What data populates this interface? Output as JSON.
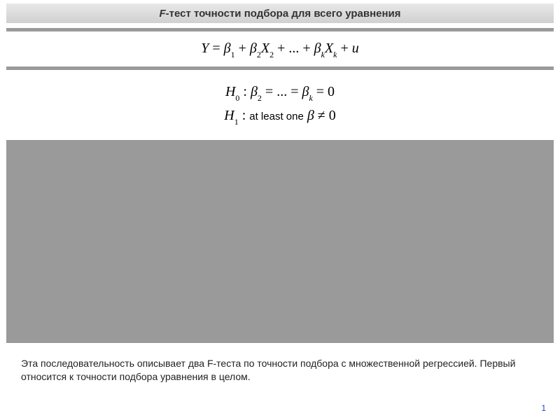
{
  "title": {
    "prefix_italic": "F",
    "rest": "-тест точности подбора для всего уравнения"
  },
  "colors": {
    "title_bg_top": "#e8e8e8",
    "title_bg_bottom": "#d0d0d0",
    "rule_gray": "#9a9a9a",
    "block_gray": "#9a9a9a",
    "page_num_color": "#2244cc",
    "text_color": "#222222",
    "background": "#ffffff"
  },
  "main_equation": {
    "Y": "Y",
    "eq": " = ",
    "b": "β",
    "s1": "1",
    "plus": " + ",
    "s2": "2",
    "X": "X",
    "dots": " + ... + ",
    "sk": "k",
    "u": "u"
  },
  "h0": {
    "H": "H",
    "sub0": "0",
    "colon": " : ",
    "b": "β",
    "s2": "2",
    "eqdots": " = ... = ",
    "sk": "k",
    "eqzero": " = 0"
  },
  "h1": {
    "H": "H",
    "sub1": "1",
    "colon": " : ",
    "text": "at least one",
    "space": "  ",
    "b": "β",
    "neq": " ≠ 0"
  },
  "description": "Эта последовательность описывает два F-теста по точности подбора с множественной регрессией. Первый относится к точности подбора уравнения в целом.",
  "page_number": "1"
}
